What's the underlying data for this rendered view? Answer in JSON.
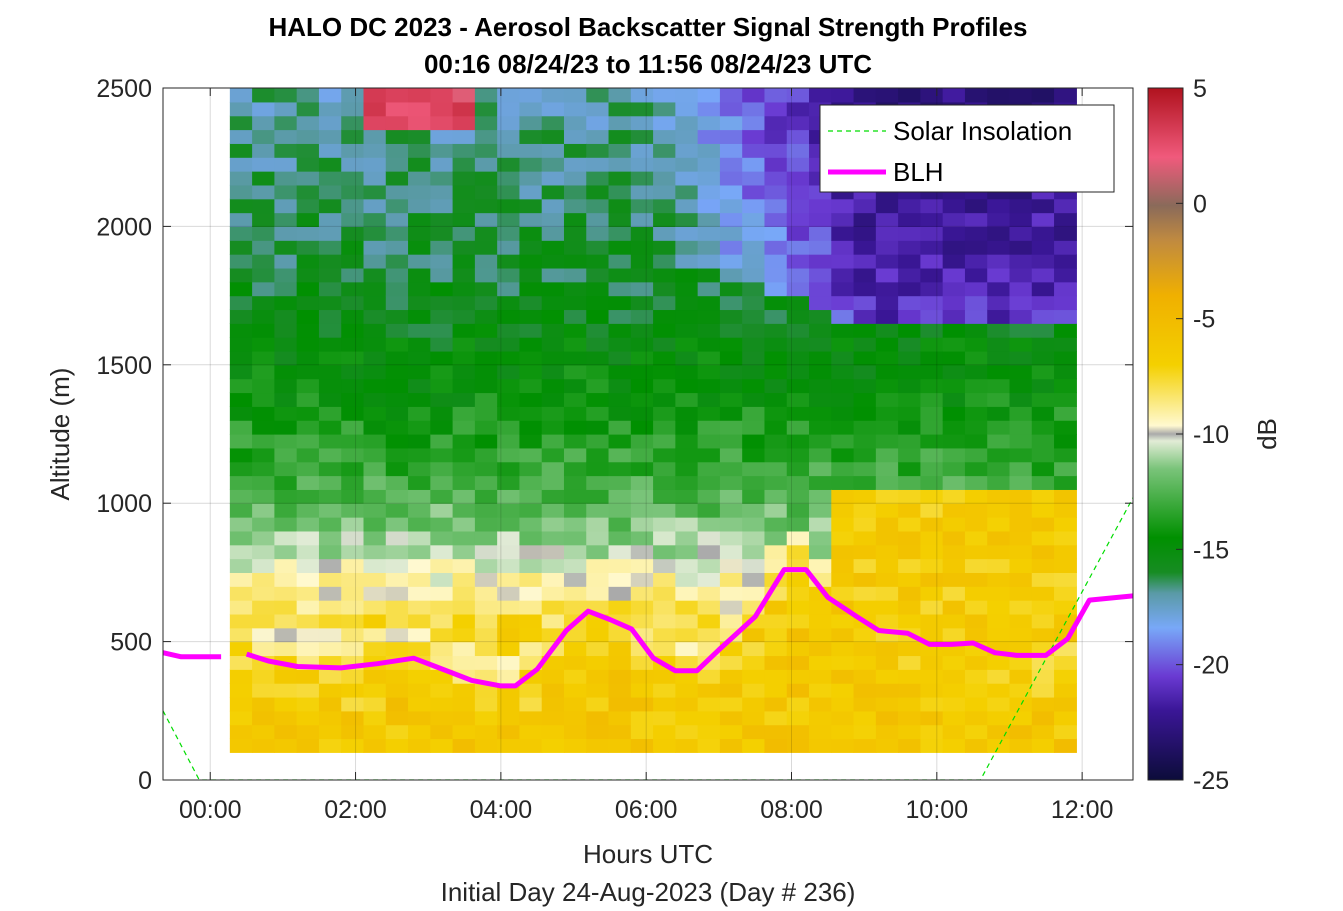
{
  "chart_data": {
    "type": "heatmap",
    "title": "HALO DC 2023 - Aerosol Backscatter Signal Strength Profiles",
    "subtitle": "00:16 08/24/23 to 11:56 08/24/23  UTC",
    "xlabel": "Hours UTC",
    "xlabel2": "Initial Day 24-Aug-2023 (Day # 236)",
    "ylabel": "Altitude (m)",
    "colorbar_label": "dB",
    "xlim": [
      -0.65,
      12.7
    ],
    "ylim": [
      0,
      2500
    ],
    "clim": [
      -25,
      5
    ],
    "x_ticks": [
      0,
      2,
      4,
      6,
      8,
      10,
      12
    ],
    "x_tick_labels": [
      "00:00",
      "02:00",
      "04:00",
      "06:00",
      "08:00",
      "10:00",
      "12:00"
    ],
    "y_ticks": [
      0,
      500,
      1000,
      1500,
      2000,
      2500
    ],
    "y_tick_labels": [
      "0",
      "500",
      "1000",
      "1500",
      "2000",
      "2500"
    ],
    "cb_ticks": [
      5,
      0,
      -5,
      -10,
      -15,
      -20,
      -25
    ],
    "cb_tick_labels": [
      "5",
      "0",
      "-5",
      "-10",
      "-15",
      "-20",
      "-25"
    ],
    "grid": true,
    "legend": {
      "placement": "top-right",
      "entries": [
        "Solar Insolation",
        "BLH"
      ]
    },
    "heatmap": {
      "x_start": 0.27,
      "x_end": 11.92,
      "y_start": 100,
      "y_end": 2500,
      "row_profile_db": [
        {
          "z": 100,
          "db": -8.5
        },
        {
          "z": 200,
          "db": -7.0
        },
        {
          "z": 550,
          "db": -7.2
        },
        {
          "z": 700,
          "db": -9.2
        },
        {
          "z": 900,
          "db": -11.5
        },
        {
          "z": 1100,
          "db": -13.0
        },
        {
          "z": 1400,
          "db": -14.5
        },
        {
          "z": 1700,
          "db": -15.5
        },
        {
          "z": 2000,
          "db": -16.2
        },
        {
          "z": 2300,
          "db": -16.8
        },
        {
          "z": 2500,
          "db": -17.2
        }
      ]
    },
    "series": [
      {
        "name": "BLH",
        "color": "#ff00ff",
        "x": [
          -0.65,
          -0.4,
          0.15,
          0.5,
          0.8,
          1.2,
          1.8,
          2.3,
          2.8,
          3.1,
          3.6,
          4.0,
          4.2,
          4.5,
          4.9,
          5.2,
          5.5,
          5.8,
          6.1,
          6.4,
          6.7,
          7.0,
          7.5,
          7.9,
          8.2,
          8.5,
          8.9,
          9.2,
          9.6,
          9.9,
          10.2,
          10.5,
          10.8,
          11.1,
          11.5,
          11.8,
          12.1,
          12.7
        ],
        "y": [
          460,
          445,
          445,
          455,
          430,
          410,
          405,
          420,
          440,
          410,
          360,
          340,
          340,
          400,
          540,
          610,
          580,
          545,
          440,
          395,
          395,
          470,
          590,
          760,
          760,
          660,
          590,
          540,
          530,
          490,
          490,
          495,
          460,
          450,
          450,
          510,
          650,
          665
        ]
      },
      {
        "name": "Solar Insolation",
        "color": "#00dd00",
        "x": [
          -0.65,
          -0.15,
          10.6,
          12.7
        ],
        "y": [
          250,
          0,
          0,
          1020
        ]
      }
    ]
  }
}
